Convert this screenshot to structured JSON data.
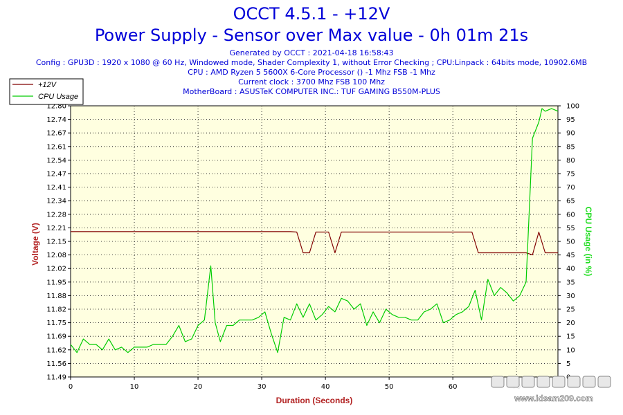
{
  "chart_data": {
    "type": "line",
    "title": "OCCT 4.5.1 - +12V",
    "subtitle": "Power Supply - Sensor over Max value - 0h 01m 21s",
    "info": [
      "Generated by OCCT : 2021-04-18 16:58:43",
      "Config : GPU3D : 1920 x 1080 @ 60 Hz, Windowed mode, Shader Complexity 1, without Error Checking ; CPU:Linpack : 64bits mode, 10902.6MB",
      "CPU : AMD Ryzen 5 5600X 6-Core Processor () -1 Mhz FSB -1 Mhz",
      "Current clock : 3700 Mhz FSB 100 Mhz",
      "MotherBoard : ASUSTeK COMPUTER INC.: TUF GAMING B550M-PLUS"
    ],
    "xlabel": "Duration (Seconds)",
    "ylabel_left": "Voltage (V)",
    "ylabel_right": "CPU Usage (in %)",
    "xlim": [
      0,
      76.5
    ],
    "ylim_left": [
      11.49,
      12.8
    ],
    "ylim_right": [
      0,
      100
    ],
    "x_ticks": [
      0,
      10,
      20,
      30,
      40,
      50,
      60,
      70
    ],
    "y_left_ticks": [
      "11.49",
      "11.56",
      "11.62",
      "11.69",
      "11.75",
      "11.82",
      "11.88",
      "11.95",
      "12.02",
      "12.08",
      "12.15",
      "12.21",
      "12.28",
      "12.34",
      "12.41",
      "12.47",
      "12.54",
      "12.61",
      "12.67",
      "12.74",
      "12.80"
    ],
    "y_right_ticks": [
      0,
      5,
      10,
      15,
      20,
      25,
      30,
      35,
      40,
      45,
      50,
      55,
      60,
      65,
      70,
      75,
      80,
      85,
      90,
      95,
      100
    ],
    "grid": true,
    "legend_position": "top-left",
    "watermark": "www.idsam209.com",
    "series": [
      {
        "name": "+12V",
        "axis": "left",
        "color": "#800000",
        "x": [
          0,
          34.5,
          35.5,
          36.5,
          37.5,
          38.5,
          40.5,
          41.5,
          42.5,
          62,
          63,
          64,
          71.5,
          72.5,
          73.5,
          74.5,
          76.5
        ],
        "values": [
          12.192,
          12.192,
          12.19,
          12.09,
          12.09,
          12.19,
          12.19,
          12.09,
          12.19,
          12.19,
          12.19,
          12.09,
          12.09,
          12.08,
          12.19,
          12.09,
          12.09
        ]
      },
      {
        "name": "CPU Usage",
        "axis": "right",
        "color": "#00cc00",
        "x": [
          0,
          1,
          2,
          3,
          4,
          5,
          6,
          7,
          8,
          9,
          10,
          11,
          12,
          13,
          14,
          15,
          16,
          17,
          18,
          19,
          20,
          21,
          22,
          22.7,
          23.5,
          24.5,
          25.5,
          26.5,
          27.5,
          28.5,
          29.5,
          30.5,
          31.5,
          32.5,
          33.5,
          34.5,
          35.5,
          36.5,
          37.5,
          38.5,
          39.5,
          40.5,
          41.5,
          42.5,
          43.5,
          44.5,
          45.5,
          46.5,
          47.5,
          48.5,
          49.5,
          50.5,
          51.5,
          52.5,
          53.5,
          54.5,
          55.5,
          56.5,
          57.5,
          58.5,
          59.5,
          60.5,
          61.5,
          62.5,
          63.5,
          64.5,
          65.5,
          66.5,
          67.5,
          68.5,
          69.5,
          70.5,
          71.5,
          72.5,
          73.5,
          74,
          74.5,
          75.5,
          76.5
        ],
        "values": [
          12,
          9,
          14,
          12,
          12,
          10,
          14,
          10,
          11,
          9,
          11,
          11,
          11,
          12,
          12,
          12,
          15,
          19,
          13,
          14,
          19,
          21,
          41,
          20,
          13,
          19,
          19,
          21,
          21,
          21,
          22,
          24,
          16,
          9,
          22,
          21,
          27,
          22,
          27,
          21,
          23,
          26,
          24,
          29,
          28,
          25,
          27,
          19,
          24,
          20,
          25,
          23,
          22,
          22,
          21,
          21,
          24,
          25,
          27,
          20,
          21,
          23,
          24,
          26,
          32,
          21,
          36,
          30,
          33,
          31,
          28,
          30,
          35,
          88,
          94,
          99,
          98,
          99,
          98
        ]
      }
    ]
  }
}
